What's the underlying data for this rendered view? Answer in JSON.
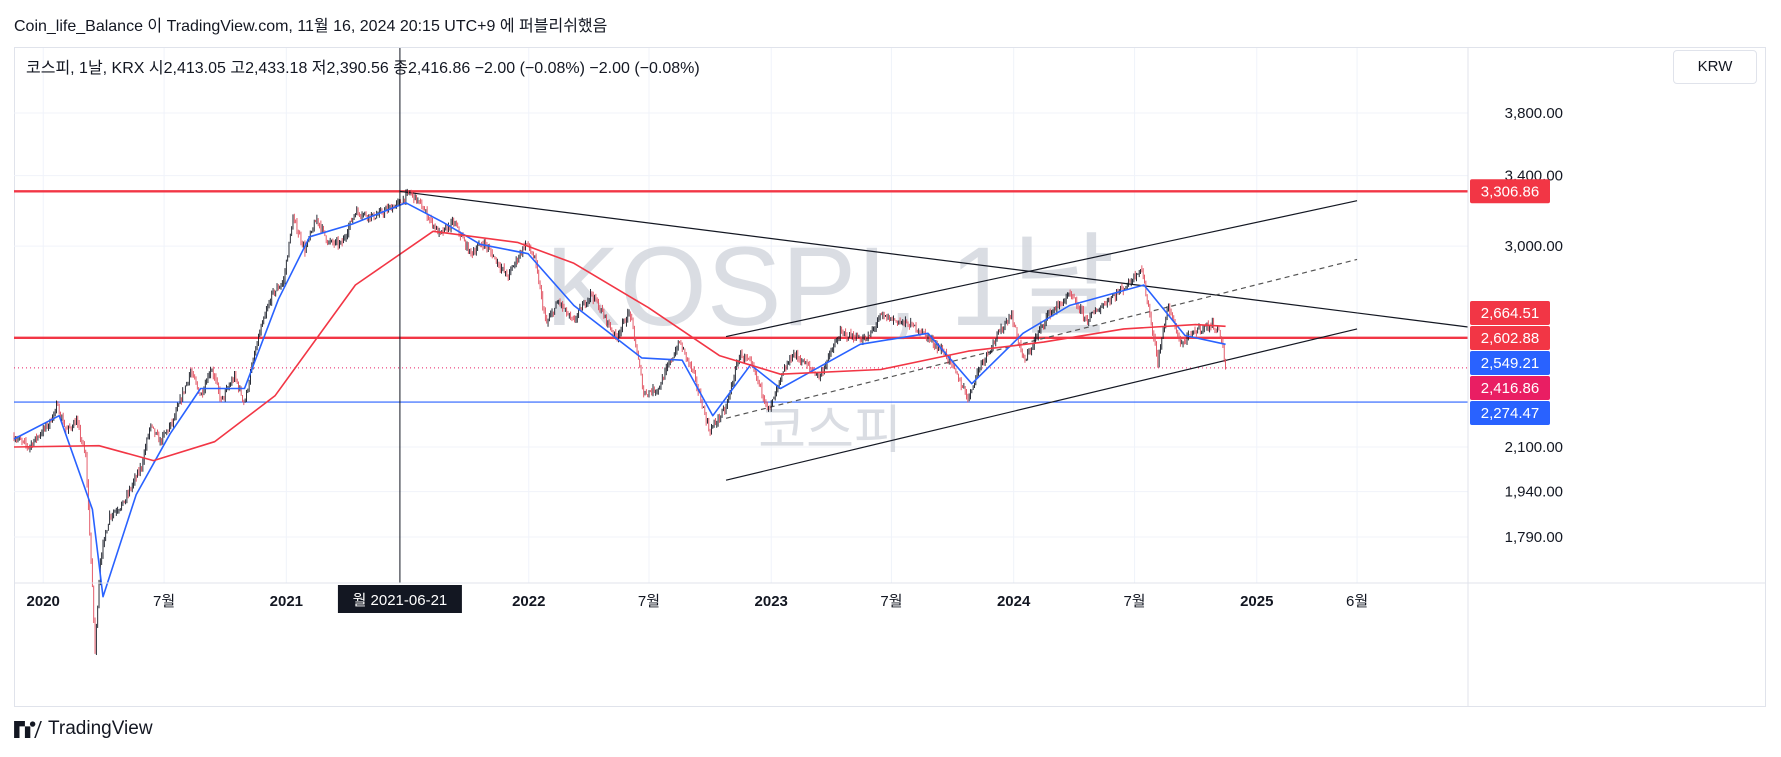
{
  "published_line": "Coin_life_Balance 이 TradingView.com, 11월 16, 2024 20:15 UTC+9 에 퍼블리쉬했음",
  "legend": "코스피, 1날, KRX 시2,413.05 고2,433.18 저2,390.56 종2,416.86 −2.00 (−0.08%) −2.00 (−0.08%)",
  "currency": "KRW",
  "watermark_main": "KOSPI, 1날",
  "watermark_sub": "코스피",
  "brand": "TradingView",
  "colors": {
    "up_candle": "#131722",
    "down_candle": "#e04a5a",
    "ema_short": "#2962ff",
    "ema_long": "#f23645",
    "horizontal_resistance": "#f23645",
    "horizontal_support": "#2962ff",
    "trendline": "#131722",
    "last_price": "#e91e63",
    "grid": "#f0f3fa"
  },
  "chart_data": {
    "type": "line",
    "x_type": "date",
    "x_ticks": [
      {
        "date": "2020-01-01",
        "label": "2020"
      },
      {
        "date": "2020-07-01",
        "label": "7월"
      },
      {
        "date": "2021-01-01",
        "label": "2021"
      },
      {
        "date": "2022-01-01",
        "label": "2022"
      },
      {
        "date": "2022-07-01",
        "label": "7월"
      },
      {
        "date": "2023-01-01",
        "label": "2023"
      },
      {
        "date": "2023-07-01",
        "label": "7월"
      },
      {
        "date": "2024-01-01",
        "label": "2024"
      },
      {
        "date": "2024-07-01",
        "label": "7월"
      },
      {
        "date": "2025-01-01",
        "label": "2025"
      },
      {
        "date": "2025-06-01",
        "label": "6월"
      }
    ],
    "y_ticks": [
      3800,
      3400,
      3000,
      2100,
      1940,
      1790
    ],
    "y_tick_labels": [
      "3,800.00",
      "3,400.00",
      "3,000.00",
      "2,100.00",
      "1,940.00",
      "1,790.00"
    ],
    "y_scale": "log",
    "price_points": [
      [
        "2019-11-18",
        2140
      ],
      [
        "2019-12-10",
        2100
      ],
      [
        "2020-01-10",
        2190
      ],
      [
        "2020-01-22",
        2260
      ],
      [
        "2020-02-05",
        2160
      ],
      [
        "2020-02-20",
        2200
      ],
      [
        "2020-03-05",
        2060
      ],
      [
        "2020-03-19",
        1460
      ],
      [
        "2020-03-27",
        1720
      ],
      [
        "2020-04-10",
        1860
      ],
      [
        "2020-05-01",
        1900
      ],
      [
        "2020-05-28",
        2030
      ],
      [
        "2020-06-10",
        2180
      ],
      [
        "2020-06-25",
        2120
      ],
      [
        "2020-07-15",
        2200
      ],
      [
        "2020-08-10",
        2400
      ],
      [
        "2020-08-25",
        2300
      ],
      [
        "2020-09-10",
        2420
      ],
      [
        "2020-09-25",
        2280
      ],
      [
        "2020-10-15",
        2380
      ],
      [
        "2020-10-30",
        2270
      ],
      [
        "2020-11-20",
        2550
      ],
      [
        "2020-12-10",
        2750
      ],
      [
        "2020-12-28",
        2820
      ],
      [
        "2021-01-11",
        3150
      ],
      [
        "2021-01-29",
        2980
      ],
      [
        "2021-02-16",
        3150
      ],
      [
        "2021-03-05",
        3020
      ],
      [
        "2021-03-25",
        3010
      ],
      [
        "2021-04-15",
        3190
      ],
      [
        "2021-05-12",
        3160
      ],
      [
        "2021-05-28",
        3190
      ],
      [
        "2021-06-21",
        3240
      ],
      [
        "2021-07-06",
        3300
      ],
      [
        "2021-07-20",
        3240
      ],
      [
        "2021-08-20",
        3060
      ],
      [
        "2021-09-10",
        3130
      ],
      [
        "2021-10-05",
        2960
      ],
      [
        "2021-10-25",
        3020
      ],
      [
        "2021-11-30",
        2840
      ],
      [
        "2021-12-28",
        3020
      ],
      [
        "2022-01-10",
        2930
      ],
      [
        "2022-01-27",
        2610
      ],
      [
        "2022-02-15",
        2720
      ],
      [
        "2022-03-08",
        2620
      ],
      [
        "2022-04-05",
        2760
      ],
      [
        "2022-05-12",
        2550
      ],
      [
        "2022-06-02",
        2670
      ],
      [
        "2022-06-23",
        2310
      ],
      [
        "2022-07-15",
        2330
      ],
      [
        "2022-08-16",
        2530
      ],
      [
        "2022-09-05",
        2400
      ],
      [
        "2022-09-30",
        2160
      ],
      [
        "2022-10-25",
        2250
      ],
      [
        "2022-11-15",
        2480
      ],
      [
        "2022-12-02",
        2430
      ],
      [
        "2022-12-29",
        2240
      ],
      [
        "2023-01-20",
        2400
      ],
      [
        "2023-02-03",
        2480
      ],
      [
        "2023-03-15",
        2380
      ],
      [
        "2023-04-15",
        2570
      ],
      [
        "2023-05-25",
        2540
      ],
      [
        "2023-06-15",
        2650
      ],
      [
        "2023-07-28",
        2610
      ],
      [
        "2023-08-10",
        2590
      ],
      [
        "2023-09-20",
        2480
      ],
      [
        "2023-10-25",
        2290
      ],
      [
        "2023-11-10",
        2420
      ],
      [
        "2023-12-28",
        2660
      ],
      [
        "2024-01-17",
        2440
      ],
      [
        "2024-02-20",
        2650
      ],
      [
        "2024-03-26",
        2750
      ],
      [
        "2024-04-20",
        2630
      ],
      [
        "2024-05-20",
        2720
      ],
      [
        "2024-06-20",
        2800
      ],
      [
        "2024-07-11",
        2890
      ],
      [
        "2024-08-05",
        2440
      ],
      [
        "2024-08-20",
        2700
      ],
      [
        "2024-09-09",
        2520
      ],
      [
        "2024-10-05",
        2590
      ],
      [
        "2024-10-28",
        2610
      ],
      [
        "2024-11-08",
        2560
      ],
      [
        "2024-11-15",
        2416.86
      ]
    ],
    "series": [
      {
        "type": "line",
        "points": [
          [
            "2019-11-18",
            2130
          ],
          [
            "2020-01-25",
            2220
          ],
          [
            "2020-03-15",
            1880
          ],
          [
            "2020-03-31",
            1610
          ],
          [
            "2020-05-20",
            1930
          ],
          [
            "2020-07-10",
            2150
          ],
          [
            "2020-08-25",
            2330
          ],
          [
            "2020-10-30",
            2330
          ],
          [
            "2020-12-20",
            2730
          ],
          [
            "2021-02-05",
            3050
          ],
          [
            "2021-04-10",
            3120
          ],
          [
            "2021-06-30",
            3240
          ],
          [
            "2021-08-25",
            3130
          ],
          [
            "2021-10-20",
            3010
          ],
          [
            "2021-12-31",
            2960
          ],
          [
            "2022-03-10",
            2700
          ],
          [
            "2022-06-20",
            2460
          ],
          [
            "2022-08-20",
            2450
          ],
          [
            "2022-10-05",
            2220
          ],
          [
            "2022-12-01",
            2430
          ],
          [
            "2023-01-15",
            2330
          ],
          [
            "2023-05-15",
            2520
          ],
          [
            "2023-08-25",
            2570
          ],
          [
            "2023-10-30",
            2350
          ],
          [
            "2024-01-15",
            2570
          ],
          [
            "2024-03-25",
            2700
          ],
          [
            "2024-07-15",
            2800
          ],
          [
            "2024-09-15",
            2560
          ],
          [
            "2024-11-15",
            2520
          ]
        ]
      },
      {
        "type": "line",
        "points": [
          [
            "2019-11-18",
            2100
          ],
          [
            "2020-03-25",
            2105
          ],
          [
            "2020-06-15",
            2050
          ],
          [
            "2020-09-15",
            2120
          ],
          [
            "2020-12-15",
            2300
          ],
          [
            "2021-04-15",
            2800
          ],
          [
            "2021-08-10",
            3080
          ],
          [
            "2021-12-15",
            3020
          ],
          [
            "2022-03-10",
            2910
          ],
          [
            "2022-06-30",
            2690
          ],
          [
            "2022-10-15",
            2470
          ],
          [
            "2023-01-15",
            2390
          ],
          [
            "2023-06-15",
            2410
          ],
          [
            "2023-10-25",
            2490
          ],
          [
            "2024-02-15",
            2530
          ],
          [
            "2024-06-15",
            2590
          ],
          [
            "2024-10-01",
            2610
          ],
          [
            "2024-11-15",
            2602
          ]
        ]
      }
    ],
    "horizontal_lines": [
      {
        "value": 3306.86,
        "label": "3,306.86"
      },
      {
        "value": 2549.21,
        "label": ""
      },
      {
        "value": 2274.47,
        "label": "2,274.47"
      }
    ],
    "trendlines": [
      {
        "start": [
          "2021-06-21",
          3306
        ],
        "end": [
          "2025-06-01",
          2664.51
        ],
        "dashed": false
      },
      {
        "start": [
          "2022-10-25",
          2555
        ],
        "end": [
          "2025-06-01",
          3252
        ],
        "dashed": false
      },
      {
        "start": [
          "2022-10-25",
          1980
        ],
        "end": [
          "2025-06-01",
          2590
        ],
        "dashed": false
      },
      {
        "start": [
          "2022-10-25",
          2210
        ],
        "end": [
          "2025-06-01",
          2930
        ],
        "dashed": true
      }
    ],
    "price_labels": [
      {
        "value": 3306.86,
        "text": "3,306.86",
        "color": "#f23645"
      },
      {
        "value": 2664.51,
        "text": "2,664.51",
        "color": "#f23645"
      },
      {
        "value": 2602.88,
        "text": "2,602.88",
        "color": "#f23645"
      },
      {
        "value": 2549.21,
        "text": "2,549.21",
        "color": "#2962ff"
      },
      {
        "value": 2416.86,
        "text": "2,416.86",
        "color": "#e91e63"
      },
      {
        "value": 2274.47,
        "text": "2,274.47",
        "color": "#2962ff"
      }
    ],
    "crosshair": {
      "date": "2021-06-21",
      "label": "월 2021-06-21"
    },
    "last_price": 2416.86,
    "grid": false,
    "legend": "top-left"
  }
}
